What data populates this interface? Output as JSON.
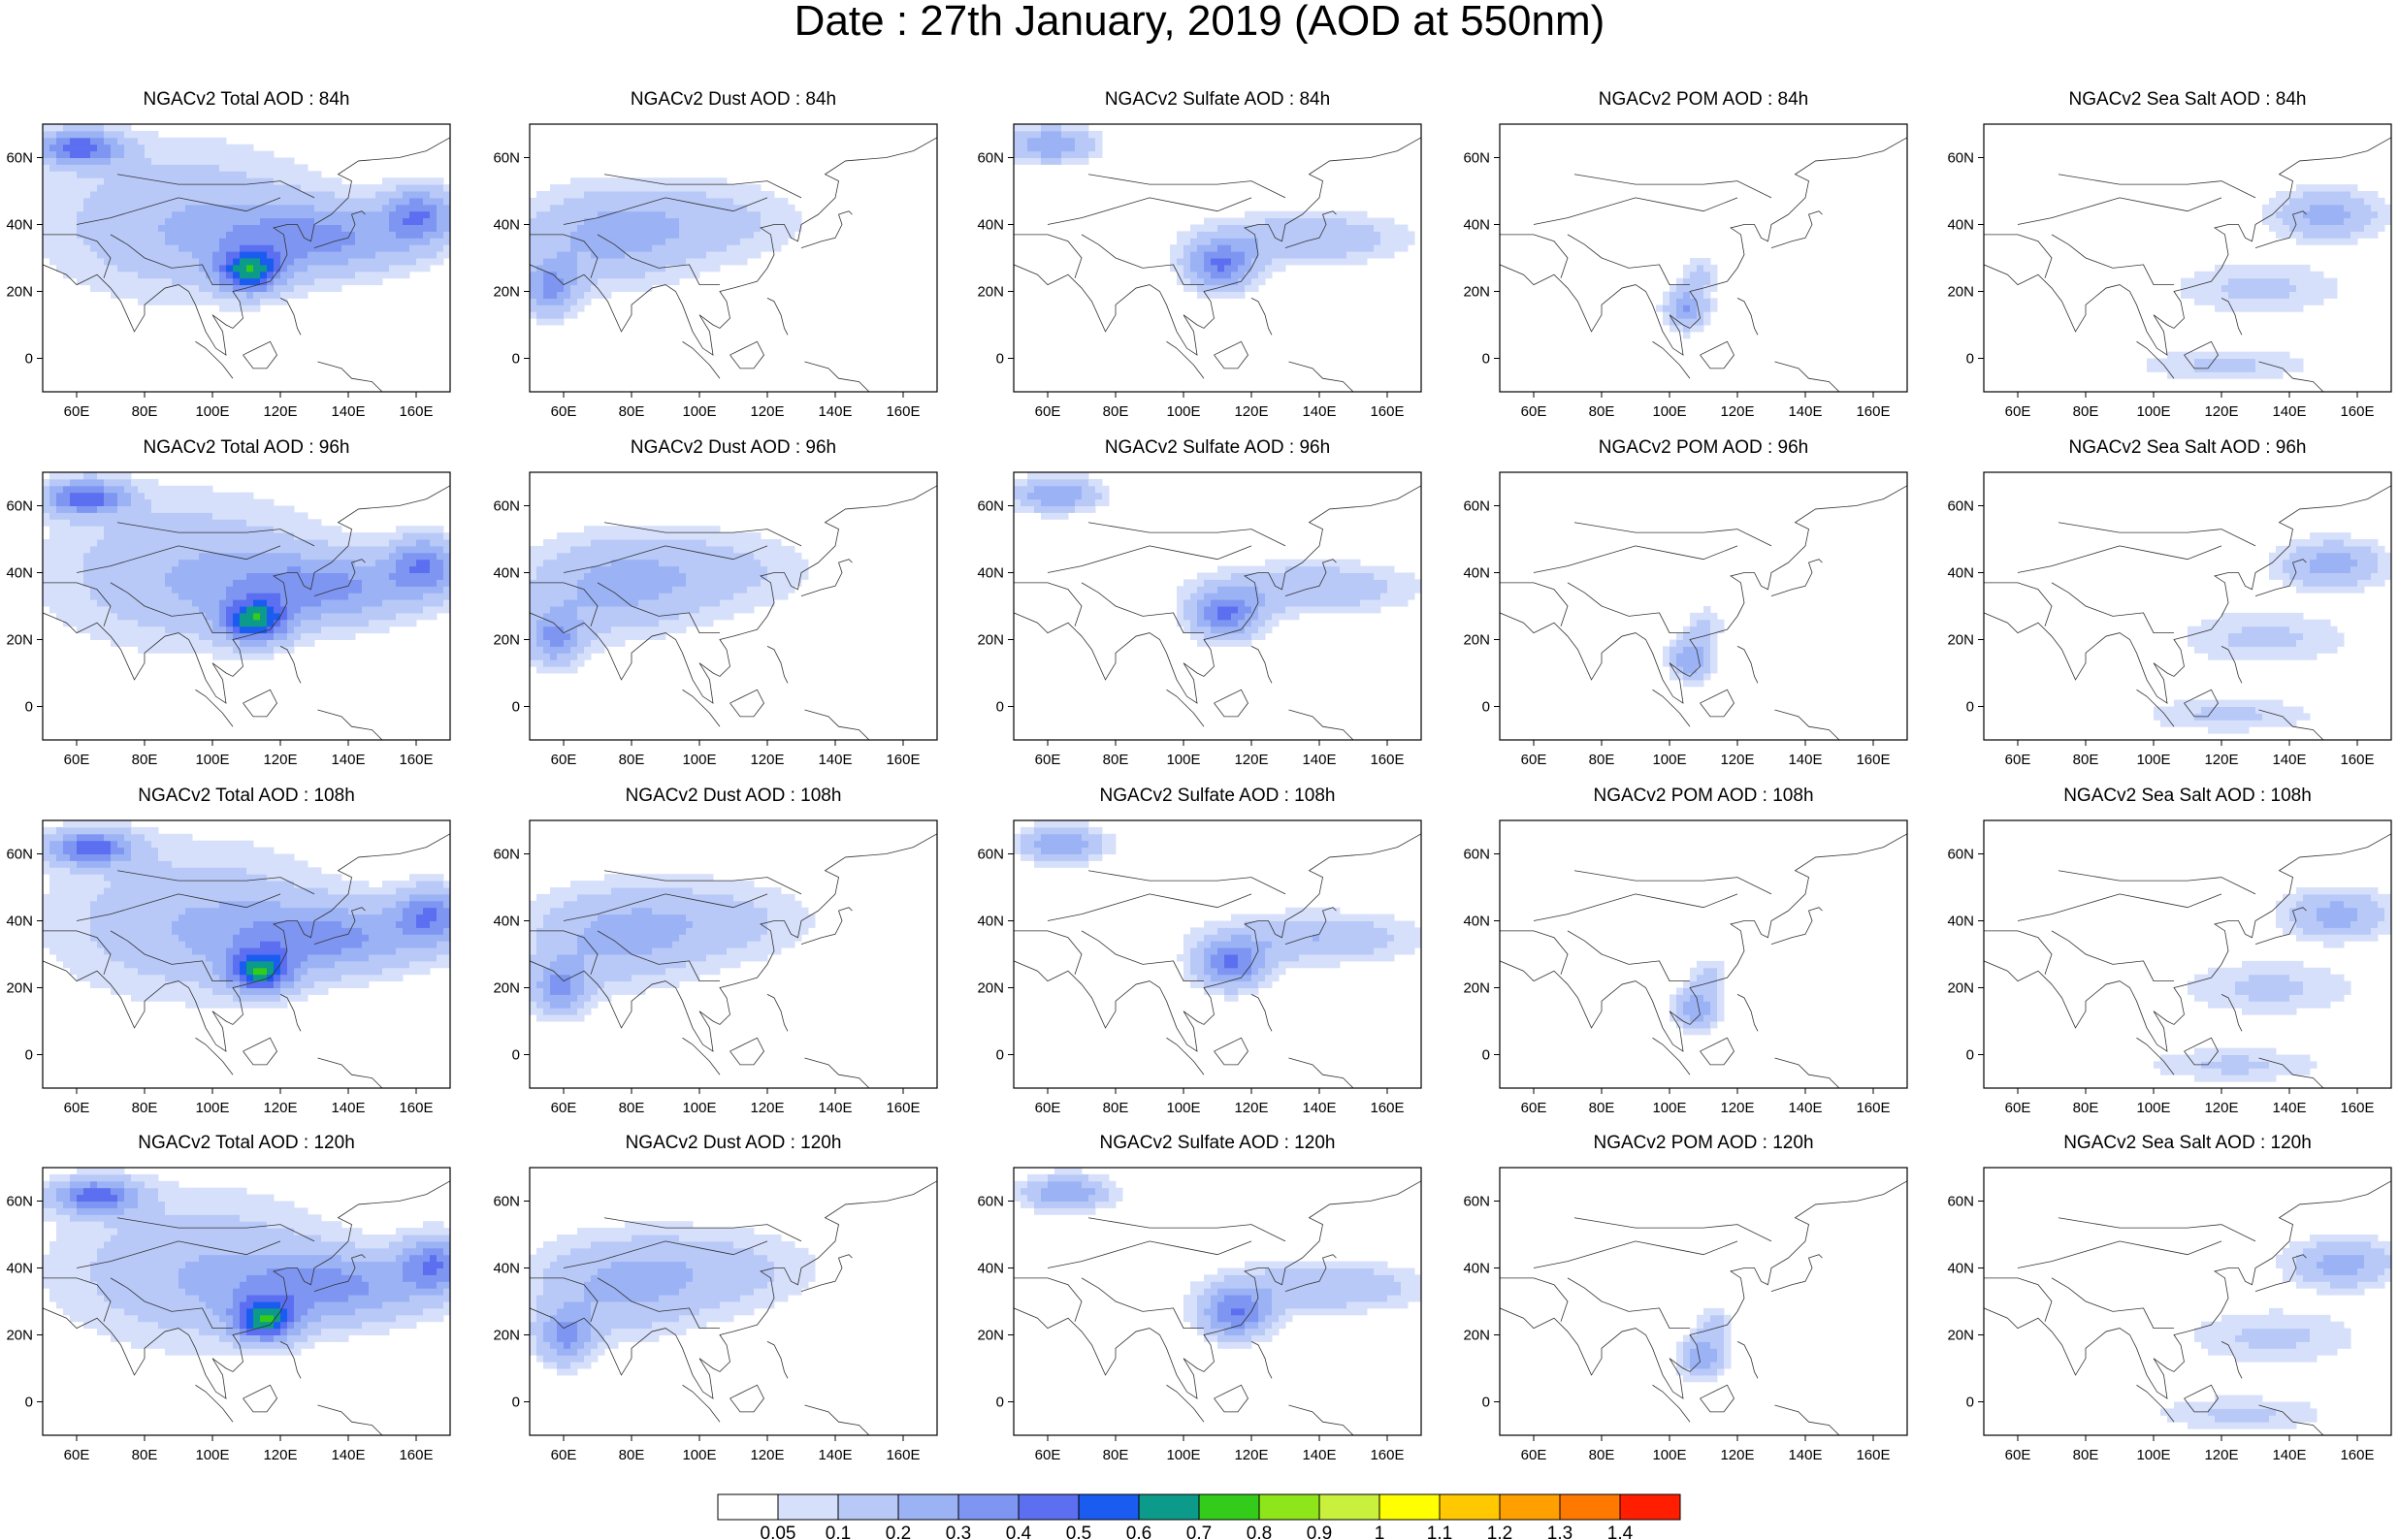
{
  "figure": {
    "title": "Date : 27th January, 2019 (AOD at 550nm)"
  },
  "chart_data": {
    "type": "heatmap",
    "x_ticks": [
      "60E",
      "80E",
      "100E",
      "120E",
      "140E",
      "160E"
    ],
    "x_tick_values": [
      60,
      80,
      100,
      120,
      140,
      160
    ],
    "y_ticks": [
      "60N",
      "40N",
      "20N",
      "0"
    ],
    "y_tick_values": [
      60,
      40,
      20,
      0
    ],
    "xlim": [
      50,
      170
    ],
    "ylim": [
      -10,
      70
    ],
    "colorbar": {
      "labels": [
        "0.05",
        "0.1",
        "0.2",
        "0.3",
        "0.4",
        "0.5",
        "0.6",
        "0.7",
        "0.8",
        "0.9",
        "1",
        "1.1",
        "1.2",
        "1.3",
        "1.4"
      ],
      "colors": [
        "#ffffff",
        "#d7e0fb",
        "#b8c9f8",
        "#9bb2f5",
        "#7e96f2",
        "#5c6ff0",
        "#1b5cf0",
        "#0c9a8a",
        "#33cc1a",
        "#8ee61a",
        "#c8f03c",
        "#ffff00",
        "#ffc800",
        "#ffa000",
        "#ff7800",
        "#ff1e00"
      ]
    },
    "panels": [
      {
        "title": "NGACv2 Total AOD : 84h",
        "kind": "total",
        "hour": 84
      },
      {
        "title": "NGACv2 Dust AOD : 84h",
        "kind": "dust",
        "hour": 84
      },
      {
        "title": "NGACv2 Sulfate AOD : 84h",
        "kind": "sulfate",
        "hour": 84
      },
      {
        "title": "NGACv2 POM AOD : 84h",
        "kind": "pom",
        "hour": 84
      },
      {
        "title": "NGACv2 Sea Salt AOD : 84h",
        "kind": "seasalt",
        "hour": 84
      },
      {
        "title": "NGACv2 Total AOD : 96h",
        "kind": "total",
        "hour": 96
      },
      {
        "title": "NGACv2 Dust AOD : 96h",
        "kind": "dust",
        "hour": 96
      },
      {
        "title": "NGACv2 Sulfate AOD : 96h",
        "kind": "sulfate",
        "hour": 96
      },
      {
        "title": "NGACv2 POM AOD : 96h",
        "kind": "pom",
        "hour": 96
      },
      {
        "title": "NGACv2 Sea Salt AOD : 96h",
        "kind": "seasalt",
        "hour": 96
      },
      {
        "title": "NGACv2 Total AOD : 108h",
        "kind": "total",
        "hour": 108
      },
      {
        "title": "NGACv2 Dust AOD : 108h",
        "kind": "dust",
        "hour": 108
      },
      {
        "title": "NGACv2 Sulfate AOD : 108h",
        "kind": "sulfate",
        "hour": 108
      },
      {
        "title": "NGACv2 POM AOD : 108h",
        "kind": "pom",
        "hour": 108
      },
      {
        "title": "NGACv2 Sea Salt AOD : 108h",
        "kind": "seasalt",
        "hour": 108
      },
      {
        "title": "NGACv2 Total AOD : 120h",
        "kind": "total",
        "hour": 120
      },
      {
        "title": "NGACv2 Dust AOD : 120h",
        "kind": "dust",
        "hour": 120
      },
      {
        "title": "NGACv2 Sulfate AOD : 120h",
        "kind": "sulfate",
        "hour": 120
      },
      {
        "title": "NGACv2 POM AOD : 120h",
        "kind": "pom",
        "hour": 120
      },
      {
        "title": "NGACv2 Sea Salt  AOD : 120h",
        "kind": "seasalt",
        "hour": 120
      }
    ],
    "plumes": {
      "total": [
        {
          "lon": 90,
          "lat": 40,
          "rx": 40,
          "ry": 22,
          "v": 0.18
        },
        {
          "lon": 110,
          "lat": 25,
          "rx": 9,
          "ry": 6,
          "v": 0.55
        },
        {
          "lon": 130,
          "lat": 35,
          "rx": 30,
          "ry": 10,
          "v": 0.3
        },
        {
          "lon": 60,
          "lat": 62,
          "rx": 12,
          "ry": 5,
          "v": 0.45
        },
        {
          "lon": 160,
          "lat": 42,
          "rx": 10,
          "ry": 8,
          "v": 0.35
        }
      ],
      "dust": [
        {
          "lon": 70,
          "lat": 35,
          "rx": 25,
          "ry": 14,
          "v": 0.2
        },
        {
          "lon": 100,
          "lat": 40,
          "rx": 30,
          "ry": 12,
          "v": 0.13
        },
        {
          "lon": 55,
          "lat": 20,
          "rx": 8,
          "ry": 8,
          "v": 0.3
        }
      ],
      "sulfate": [
        {
          "lon": 110,
          "lat": 27,
          "rx": 10,
          "ry": 7,
          "v": 0.4
        },
        {
          "lon": 135,
          "lat": 35,
          "rx": 28,
          "ry": 7,
          "v": 0.2
        },
        {
          "lon": 60,
          "lat": 63,
          "rx": 12,
          "ry": 5,
          "v": 0.3
        }
      ],
      "pom": [
        {
          "lon": 104,
          "lat": 14,
          "rx": 6,
          "ry": 6,
          "v": 0.3
        },
        {
          "lon": 108,
          "lat": 24,
          "rx": 5,
          "ry": 5,
          "v": 0.12
        }
      ],
      "seasalt": [
        {
          "lon": 150,
          "lat": 42,
          "rx": 15,
          "ry": 7,
          "v": 0.25
        },
        {
          "lon": 130,
          "lat": 20,
          "rx": 25,
          "ry": 8,
          "v": 0.12
        },
        {
          "lon": 120,
          "lat": -3,
          "rx": 25,
          "ry": 5,
          "v": 0.12
        }
      ]
    }
  }
}
